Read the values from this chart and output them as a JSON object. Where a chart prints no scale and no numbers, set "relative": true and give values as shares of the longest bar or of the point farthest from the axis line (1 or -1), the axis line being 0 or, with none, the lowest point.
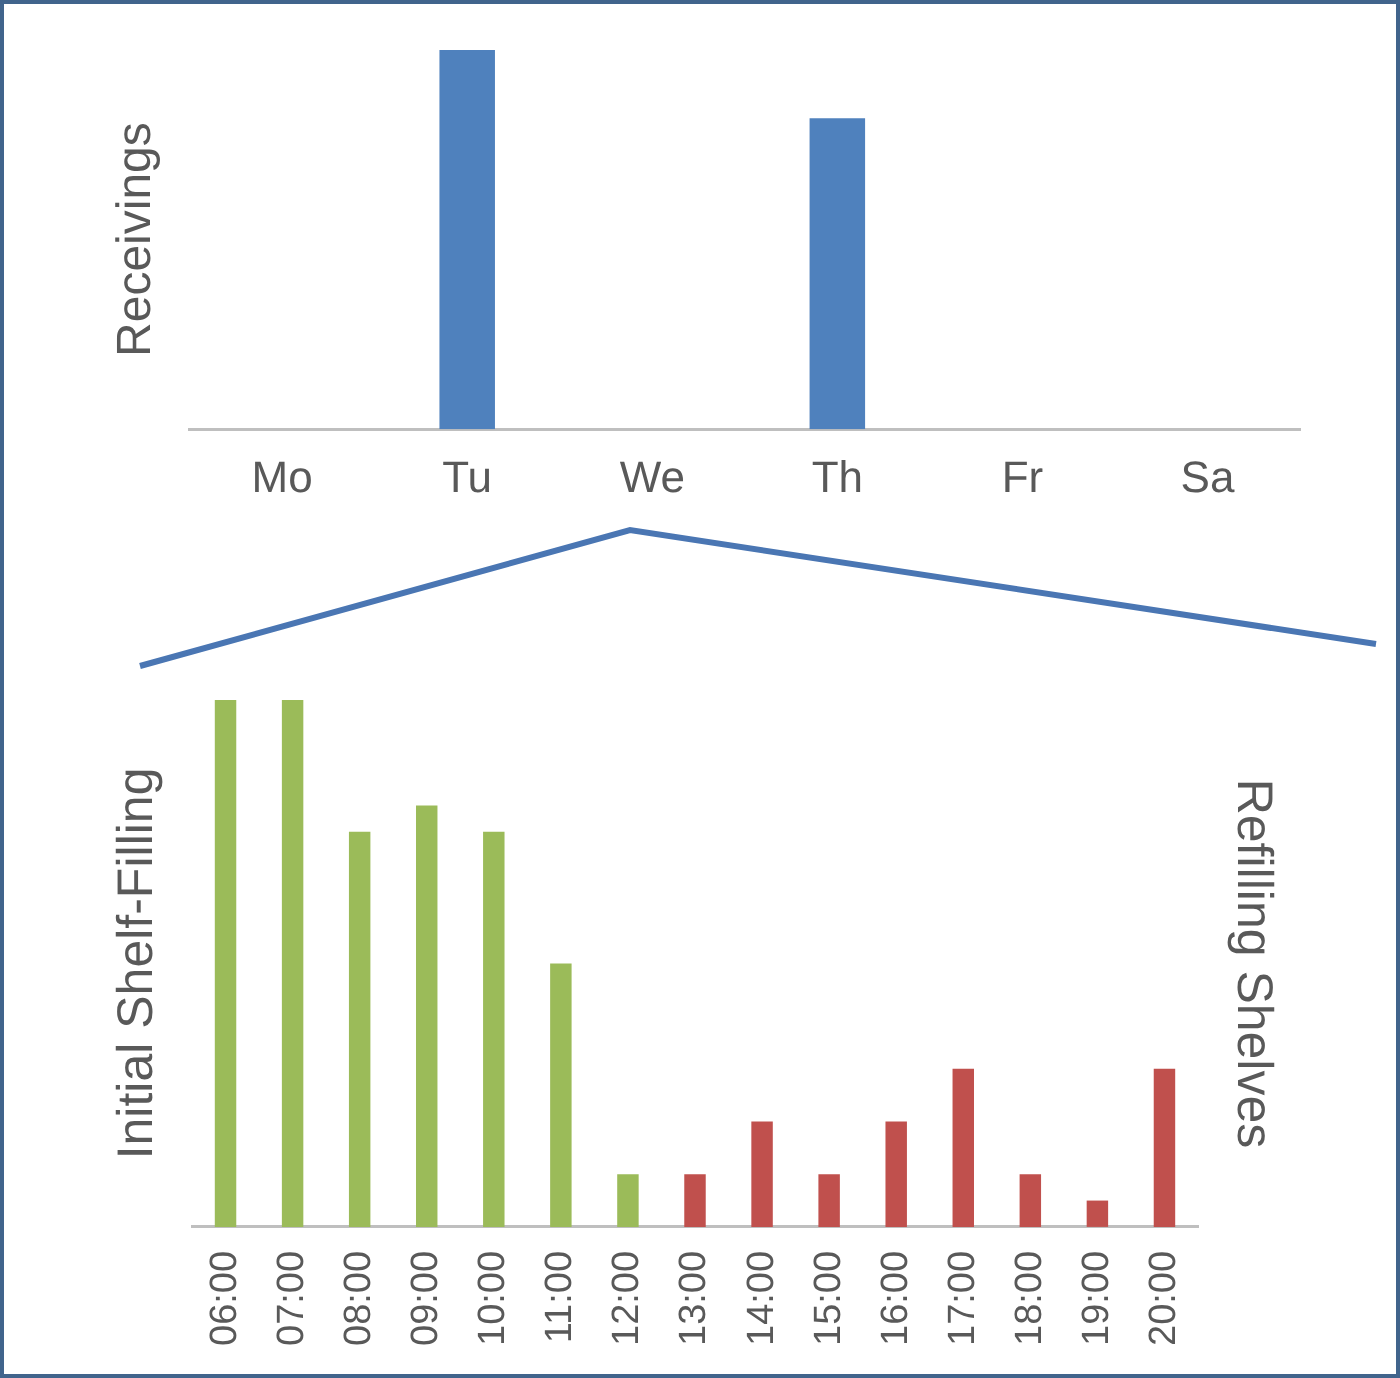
{
  "chart_data": [
    {
      "type": "bar",
      "ylabel": "Receivings",
      "relative": true,
      "categories": [
        "Mo",
        "Tu",
        "We",
        "Th",
        "Fr",
        "Sa"
      ],
      "series": [
        {
          "color": "#4f81bd",
          "values": [
            0,
            1,
            0,
            0.82,
            0,
            0
          ]
        }
      ]
    },
    {
      "type": "bar",
      "ylabel": "Initial Shelf-Filling",
      "y2label": "Refilling Shelves",
      "relative": true,
      "categories": [
        "06:00",
        "07:00",
        "08:00",
        "09:00",
        "10:00",
        "11:00",
        "12:00",
        "13:00",
        "14:00",
        "15:00",
        "16:00",
        "17:00",
        "18:00",
        "19:00",
        "20:00"
      ],
      "series": [
        {
          "color": "#9bbb59",
          "values": [
            1,
            1,
            0.75,
            0.8,
            0.75,
            0.5,
            0.1,
            null,
            null,
            null,
            null,
            null,
            null,
            null,
            null
          ]
        },
        {
          "color": "#c0504d",
          "values": [
            null,
            null,
            null,
            null,
            null,
            null,
            null,
            0.1,
            0.2,
            0.1,
            0.2,
            0.3,
            0.1,
            0.05,
            0.3
          ]
        }
      ]
    }
  ]
}
